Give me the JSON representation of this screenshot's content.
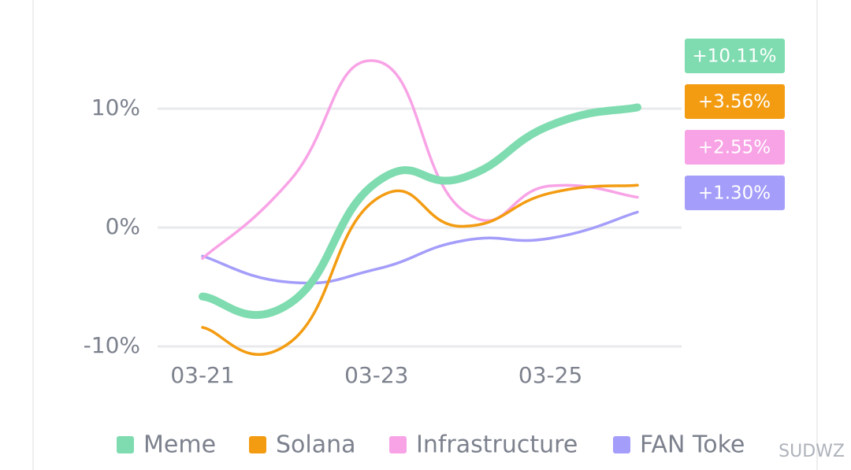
{
  "chart_data": {
    "type": "line",
    "categories": [
      "03-21",
      null,
      "03-23",
      null,
      "03-25",
      null
    ],
    "ylim": [
      -10,
      10
    ],
    "yticks": [
      {
        "value": -10,
        "label": "-10%"
      },
      {
        "value": 0,
        "label": "0%"
      },
      {
        "value": 10,
        "label": "10%"
      }
    ],
    "grid": true,
    "series": [
      {
        "name": "Meme",
        "color": "#7fdcb0",
        "values": [
          -5.8,
          -6.4,
          3.8,
          4.2,
          8.6,
          10.11
        ],
        "value_labels": [
          null,
          null,
          null,
          null,
          null,
          "+10.11%"
        ]
      },
      {
        "name": "Solana",
        "color": "#f39c12",
        "values": [
          -8.4,
          -9.7,
          2.4,
          0.1,
          2.9,
          3.56
        ],
        "value_labels": [
          null,
          null,
          null,
          null,
          null,
          "+3.56%"
        ]
      },
      {
        "name": "Infrastructure",
        "color": "#f8a3e6",
        "values": [
          -2.6,
          3.9,
          14,
          1.4,
          3.5,
          2.55
        ],
        "value_labels": [
          null,
          null,
          null,
          null,
          null,
          "+2.55%"
        ]
      },
      {
        "name": "FAN Toke",
        "color": "#a49dfa",
        "values": [
          -2.4,
          -4.6,
          -3.5,
          -1.1,
          -0.9,
          1.3
        ],
        "value_labels": [
          null,
          null,
          null,
          null,
          null,
          "+1.30%"
        ]
      }
    ],
    "watermark": "SUDWZ"
  }
}
